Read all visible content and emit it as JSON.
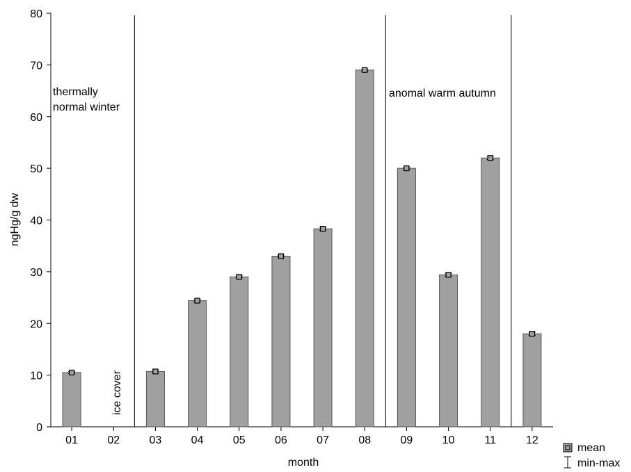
{
  "chart_data": {
    "type": "bar",
    "categories": [
      "01",
      "02",
      "03",
      "04",
      "05",
      "06",
      "07",
      "08",
      "09",
      "10",
      "11",
      "12"
    ],
    "values": [
      10.5,
      null,
      10.7,
      24.4,
      29.0,
      33.0,
      38.3,
      69.0,
      50.0,
      29.4,
      52.0,
      18.0
    ],
    "min": [
      10.3,
      null,
      10.4,
      24.2,
      28.8,
      32.8,
      38.0,
      68.8,
      49.8,
      29.1,
      51.7,
      17.7
    ],
    "max": [
      10.7,
      null,
      11.0,
      24.6,
      29.2,
      33.2,
      38.6,
      69.2,
      50.2,
      29.7,
      52.3,
      18.3
    ],
    "xlabel": "month",
    "ylabel": "ngHg/g dw",
    "ylim": [
      0,
      80
    ],
    "yticks": [
      0,
      10,
      20,
      30,
      40,
      50,
      60,
      70,
      80
    ],
    "grid": false,
    "bar_color": "#a0a0a0",
    "legend": {
      "placement": "bottom-right",
      "mean_label": "mean",
      "minmax_label": "min-max"
    },
    "annotations": {
      "winter_line1": "thermally",
      "winter_line2": "normal winter",
      "ice_cover": "ice cover",
      "autumn": "anomal warm autumn"
    },
    "period_dividers_after_category": [
      "02",
      "08",
      "11"
    ]
  }
}
